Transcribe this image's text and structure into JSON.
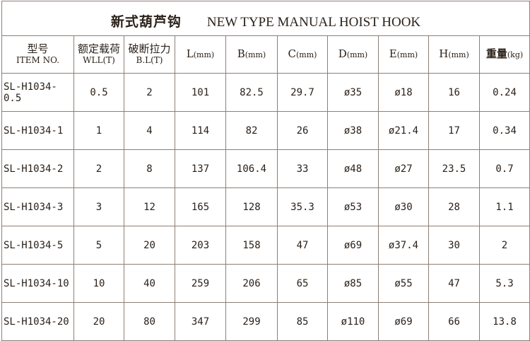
{
  "title": {
    "cn": "新式葫芦钩",
    "en": "NEW TYPE MANUAL HOIST HOOK"
  },
  "headers": [
    {
      "line1": "型号",
      "line2": "ITEM NO."
    },
    {
      "line1": "额定载荷",
      "line2": "WLL(T)"
    },
    {
      "line1": "破断拉力",
      "line2": "B.L(T)"
    },
    {
      "label": "L",
      "unit": "(mm)"
    },
    {
      "label": "B",
      "unit": "(mm)"
    },
    {
      "label": "C",
      "unit": "(mm)"
    },
    {
      "label": "D",
      "unit": "(mm)"
    },
    {
      "label": "E",
      "unit": "(mm)"
    },
    {
      "label": "H",
      "unit": "(mm)"
    },
    {
      "label": "重量",
      "unit": "(kg)"
    }
  ],
  "rows": [
    [
      "SL-H1034-0.5",
      "0.5",
      "2",
      "101",
      "82.5",
      "29.7",
      "ø35",
      "ø18",
      "16",
      "0.24"
    ],
    [
      "SL-H1034-1",
      "1",
      "4",
      "114",
      "82",
      "26",
      "ø38",
      "ø21.4",
      "17",
      "0.34"
    ],
    [
      "SL-H1034-2",
      "2",
      "8",
      "137",
      "106.4",
      "33",
      "ø48",
      "ø27",
      "23.5",
      "0.7"
    ],
    [
      "SL-H1034-3",
      "3",
      "12",
      "165",
      "128",
      "35.3",
      "ø53",
      "ø30",
      "28",
      "1.1"
    ],
    [
      "SL-H1034-5",
      "5",
      "20",
      "203",
      "158",
      "47",
      "ø69",
      "ø37.4",
      "30",
      "2"
    ],
    [
      "SL-H1034-10",
      "10",
      "40",
      "259",
      "206",
      "65",
      "ø85",
      "ø55",
      "47",
      "5.3"
    ],
    [
      "SL-H1034-20",
      "20",
      "80",
      "347",
      "299",
      "85",
      "ø110",
      "ø69",
      "66",
      "13.8"
    ]
  ]
}
